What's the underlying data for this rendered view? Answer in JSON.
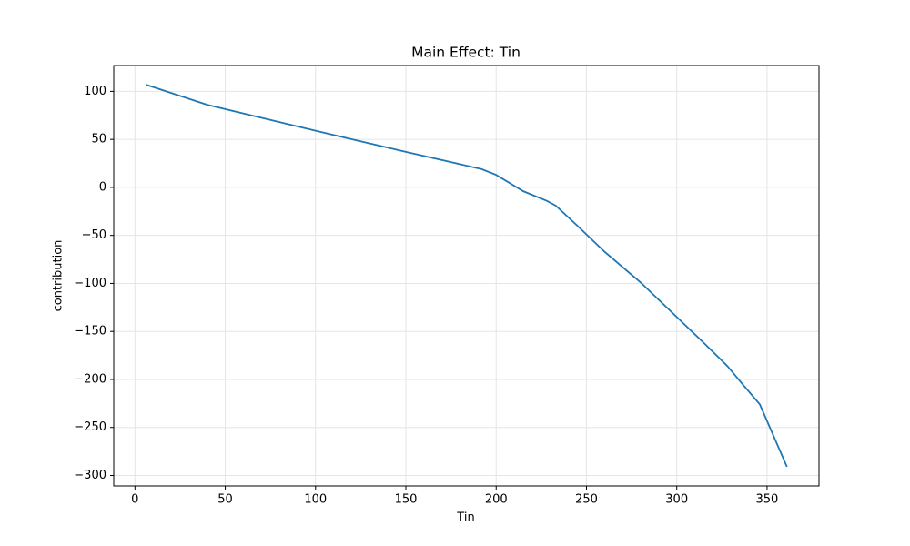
{
  "chart_data": {
    "type": "line",
    "title": "Main Effect: Tin",
    "xlabel": "Tin",
    "ylabel": "contribution",
    "x": [
      6,
      40,
      100,
      150,
      192,
      200,
      215,
      228,
      233,
      245,
      260,
      280,
      300,
      315,
      328,
      336,
      346,
      361
    ],
    "series": [
      {
        "name": "Tin",
        "color": "#1f77b4",
        "values": [
          107,
          86,
          59,
          37,
          19,
          13,
          -4,
          -14,
          -19,
          -40,
          -67,
          -99,
          -135,
          -162,
          -186,
          -204,
          -226,
          -291
        ]
      }
    ],
    "xlim": [
      -11.75,
      378.75
    ],
    "xticks": [
      0,
      50,
      100,
      150,
      200,
      250,
      300,
      350
    ],
    "ylim": [
      -310.9,
      126.9
    ],
    "yticks": [
      100,
      50,
      0,
      {
        "value": -50,
        "label": "−50"
      },
      {
        "value": -100,
        "label": "−100"
      },
      {
        "value": -150,
        "label": "−150"
      },
      {
        "value": -200,
        "label": "−200"
      },
      {
        "value": -250,
        "label": "−250"
      },
      {
        "value": -300,
        "label": "−300"
      }
    ],
    "grid": true
  }
}
